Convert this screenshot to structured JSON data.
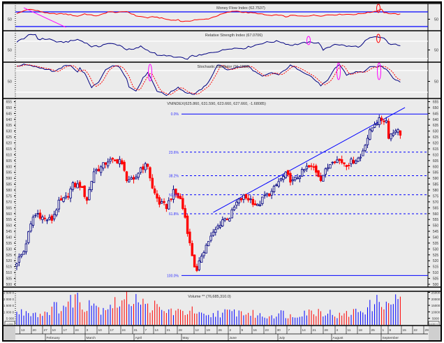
{
  "panels": {
    "mfi": {
      "title": "Money Flow Index (62.7537)",
      "mid_label": "50",
      "upper": 80,
      "lower": 20,
      "series": [
        [
          0,
          72
        ],
        [
          5,
          92
        ],
        [
          11,
          80
        ],
        [
          14,
          72
        ],
        [
          20,
          72
        ],
        [
          23,
          68
        ],
        [
          26,
          62
        ],
        [
          29,
          72
        ],
        [
          32,
          66
        ],
        [
          35,
          64
        ],
        [
          39,
          80
        ],
        [
          44,
          78
        ],
        [
          47,
          82
        ],
        [
          51,
          64
        ],
        [
          56,
          56
        ],
        [
          59,
          60
        ],
        [
          61,
          56
        ],
        [
          66,
          46
        ],
        [
          69,
          48
        ],
        [
          70,
          42
        ],
        [
          73,
          40
        ],
        [
          76,
          48
        ],
        [
          79,
          48
        ],
        [
          82,
          52
        ],
        [
          85,
          62
        ],
        [
          88,
          72
        ],
        [
          91,
          80
        ],
        [
          94,
          84
        ],
        [
          97,
          78
        ],
        [
          100,
          76
        ],
        [
          103,
          74
        ],
        [
          106,
          68
        ],
        [
          109,
          64
        ],
        [
          112,
          68
        ],
        [
          115,
          60
        ],
        [
          118,
          66
        ],
        [
          121,
          62
        ],
        [
          124,
          64
        ],
        [
          127,
          66
        ],
        [
          130,
          64
        ],
        [
          133,
          68
        ],
        [
          136,
          68
        ],
        [
          139,
          70
        ],
        [
          142,
          70
        ],
        [
          145,
          70
        ],
        [
          148,
          74
        ],
        [
          151,
          78
        ],
        [
          154,
          84
        ],
        [
          156,
          92
        ],
        [
          157,
          78
        ],
        [
          160,
          72
        ],
        [
          164,
          70
        ]
      ],
      "trendline": [
        [
          3,
          97
        ],
        [
          21,
          17
        ]
      ]
    },
    "rsi": {
      "title": "Relative Strength Index (67.0706)",
      "mid_label": "50",
      "upper": 70,
      "lower": 30,
      "series": [
        [
          0,
          68
        ],
        [
          5,
          83
        ],
        [
          8,
          86
        ],
        [
          9,
          75
        ],
        [
          14,
          75
        ],
        [
          18,
          67
        ],
        [
          23,
          70
        ],
        [
          26,
          74
        ],
        [
          29,
          68
        ],
        [
          32,
          58
        ],
        [
          35,
          58
        ],
        [
          38,
          64
        ],
        [
          41,
          64
        ],
        [
          44,
          61
        ],
        [
          47,
          51
        ],
        [
          50,
          51
        ],
        [
          53,
          58
        ],
        [
          56,
          49
        ],
        [
          59,
          42
        ],
        [
          61,
          36
        ],
        [
          64,
          38
        ],
        [
          67,
          33
        ],
        [
          70,
          33
        ],
        [
          72,
          28
        ],
        [
          75,
          36
        ],
        [
          79,
          38
        ],
        [
          84,
          45
        ],
        [
          88,
          49
        ],
        [
          91,
          54
        ],
        [
          97,
          54
        ],
        [
          100,
          58
        ],
        [
          106,
          67
        ],
        [
          112,
          70
        ],
        [
          117,
          61
        ],
        [
          121,
          64
        ],
        [
          124,
          67
        ],
        [
          129,
          67
        ],
        [
          131,
          51
        ],
        [
          133,
          54
        ],
        [
          136,
          64
        ],
        [
          142,
          58
        ],
        [
          147,
          58
        ],
        [
          149,
          70
        ],
        [
          151,
          77
        ],
        [
          154,
          80
        ],
        [
          157,
          77
        ],
        [
          159,
          64
        ],
        [
          161,
          64
        ],
        [
          164,
          58
        ]
      ]
    },
    "stoch": {
      "title": "Stochastic Oscillator (91.1580)",
      "mid_label": "50",
      "upper": 80,
      "lower": 20,
      "series": [
        [
          0,
          92
        ],
        [
          3,
          97
        ],
        [
          9,
          89
        ],
        [
          14,
          82
        ],
        [
          16,
          76
        ],
        [
          20,
          92
        ],
        [
          23,
          94
        ],
        [
          26,
          74
        ],
        [
          27,
          86
        ],
        [
          29,
          72
        ],
        [
          32,
          34
        ],
        [
          35,
          47
        ],
        [
          38,
          82
        ],
        [
          41,
          95
        ],
        [
          44,
          89
        ],
        [
          47,
          59
        ],
        [
          48,
          34
        ],
        [
          51,
          24
        ],
        [
          54,
          59
        ],
        [
          56,
          76
        ],
        [
          60,
          24
        ],
        [
          64,
          12
        ],
        [
          69,
          34
        ],
        [
          72,
          20
        ],
        [
          76,
          14
        ],
        [
          81,
          39
        ],
        [
          84,
          72
        ],
        [
          86,
          97
        ],
        [
          90,
          82
        ],
        [
          94,
          89
        ],
        [
          99,
          92
        ],
        [
          102,
          76
        ],
        [
          105,
          63
        ],
        [
          109,
          74
        ],
        [
          112,
          68
        ],
        [
          117,
          94
        ],
        [
          121,
          82
        ],
        [
          126,
          63
        ],
        [
          130,
          39
        ],
        [
          133,
          52
        ],
        [
          136,
          86
        ],
        [
          138,
          97
        ],
        [
          141,
          68
        ],
        [
          145,
          76
        ],
        [
          148,
          76
        ],
        [
          151,
          89
        ],
        [
          156,
          92
        ],
        [
          159,
          78
        ],
        [
          161,
          59
        ],
        [
          164,
          49
        ]
      ]
    }
  },
  "main": {
    "title": "VNINDEX(625.860, 631.590, 623.660, 627.660, -1.68085)",
    "days": 165,
    "axis_labels": [
      "655",
      "650",
      "645",
      "640",
      "635",
      "630",
      "625",
      "620",
      "615",
      "610",
      "605",
      "600",
      "595",
      "590",
      "585",
      "580",
      "575",
      "570",
      "565",
      "560",
      "555",
      "550",
      "545",
      "540",
      "535",
      "530",
      "525",
      "520",
      "515",
      "510",
      "505",
      "500"
    ],
    "close": [
      [
        0,
        519
      ],
      [
        3,
        528
      ],
      [
        5,
        543
      ],
      [
        7,
        557
      ],
      [
        9,
        560
      ],
      [
        12,
        555
      ],
      [
        15,
        555
      ],
      [
        18,
        569
      ],
      [
        21,
        573
      ],
      [
        24,
        584
      ],
      [
        27,
        584
      ],
      [
        30,
        572
      ],
      [
        33,
        596
      ],
      [
        36,
        599
      ],
      [
        39,
        605
      ],
      [
        42,
        604
      ],
      [
        44,
        606
      ],
      [
        47,
        590
      ],
      [
        50,
        587
      ],
      [
        53,
        599
      ],
      [
        56,
        601
      ],
      [
        58,
        581
      ],
      [
        61,
        569
      ],
      [
        64,
        566
      ],
      [
        67,
        578
      ],
      [
        70,
        572
      ],
      [
        72,
        557
      ],
      [
        74,
        534
      ],
      [
        76,
        516
      ],
      [
        77,
        510
      ],
      [
        79,
        525
      ],
      [
        82,
        537
      ],
      [
        85,
        546
      ],
      [
        88,
        555
      ],
      [
        91,
        557
      ],
      [
        94,
        569
      ],
      [
        97,
        574
      ],
      [
        100,
        572
      ],
      [
        103,
        566
      ],
      [
        106,
        575
      ],
      [
        109,
        578
      ],
      [
        112,
        587
      ],
      [
        115,
        593
      ],
      [
        118,
        587
      ],
      [
        121,
        593
      ],
      [
        124,
        599
      ],
      [
        127,
        599
      ],
      [
        130,
        590
      ],
      [
        132,
        596
      ],
      [
        135,
        606
      ],
      [
        138,
        605
      ],
      [
        141,
        602
      ],
      [
        144,
        605
      ],
      [
        147,
        608
      ],
      [
        149,
        620
      ],
      [
        151,
        629
      ],
      [
        153,
        637
      ],
      [
        156,
        640
      ],
      [
        158,
        639
      ],
      [
        159,
        626
      ],
      [
        161,
        629
      ],
      [
        162,
        632
      ],
      [
        164,
        628
      ]
    ],
    "fibonacci": {
      "high": 644.5,
      "low": 507.5,
      "levels": [
        {
          "ratio": 0,
          "label": "0.0%"
        },
        {
          "ratio": 0.236,
          "label": "23.6%"
        },
        {
          "ratio": 0.382,
          "label": "38.2%"
        },
        {
          "ratio": 0.5,
          "label": "50.0%"
        },
        {
          "ratio": 0.618,
          "label": "61.8%"
        },
        {
          "ratio": 1,
          "label": "100.0%"
        }
      ]
    },
    "trendline": [
      [
        84,
        561
      ],
      [
        166,
        650
      ]
    ]
  },
  "volume": {
    "title": "Volume ** (76,685,310.0)",
    "axis_left": [
      "2 500 0",
      "2 000 0",
      "1 500 0",
      "1 000 0",
      "5 000"
    ],
    "axis_right": [
      "25000",
      "20000",
      "15000",
      "10000",
      "5000"
    ],
    "unit_left": "x1000",
    "unit_right": "x1000 0",
    "series": [
      [
        0,
        9000
      ],
      [
        6,
        10500
      ],
      [
        10,
        8000
      ],
      [
        14,
        12000
      ],
      [
        18,
        14000
      ],
      [
        22,
        15000
      ],
      [
        25,
        24000
      ],
      [
        28,
        13500
      ],
      [
        32,
        21000
      ],
      [
        35,
        12000
      ],
      [
        40,
        16000
      ],
      [
        44,
        17000
      ],
      [
        48,
        19500
      ],
      [
        50,
        22000
      ],
      [
        52,
        23000
      ],
      [
        55,
        13000
      ],
      [
        58,
        15500
      ],
      [
        62,
        10000
      ],
      [
        66,
        11000
      ],
      [
        70,
        9000
      ],
      [
        74,
        11500
      ],
      [
        78,
        7500
      ],
      [
        82,
        6000
      ],
      [
        86,
        9500
      ],
      [
        90,
        9000
      ],
      [
        94,
        10000
      ],
      [
        98,
        9000
      ],
      [
        102,
        8000
      ],
      [
        106,
        6500
      ],
      [
        110,
        8000
      ],
      [
        114,
        9000
      ],
      [
        118,
        6000
      ],
      [
        122,
        10500
      ],
      [
        126,
        9500
      ],
      [
        130,
        11000
      ],
      [
        134,
        9000
      ],
      [
        138,
        7000
      ],
      [
        142,
        8500
      ],
      [
        146,
        11000
      ],
      [
        150,
        13000
      ],
      [
        154,
        17000
      ],
      [
        156,
        21000
      ],
      [
        158,
        13500
      ],
      [
        160,
        16000
      ],
      [
        162,
        22000
      ],
      [
        164,
        17000
      ]
    ]
  },
  "dates": [
    "13",
    "20",
    "27",
    "10",
    "17",
    "24",
    "3",
    "10",
    "17",
    "24",
    "31",
    "7",
    "14",
    "21",
    "28",
    "12",
    "19",
    "26",
    "2",
    "9",
    "16",
    "23",
    "30",
    "7",
    "14",
    "21",
    "28",
    "4",
    "11",
    "18",
    "25",
    "1",
    "8",
    "15",
    "22",
    "29"
  ],
  "months": [
    "February",
    "March",
    "April",
    "May",
    "June",
    "July",
    "August",
    "September"
  ],
  "colors": {
    "up": "#000080",
    "down": "#ff0000",
    "fib": "#0000ff",
    "panel": "#ebebeb",
    "mfi": "#ff0000",
    "trend": "#ff00ff"
  }
}
